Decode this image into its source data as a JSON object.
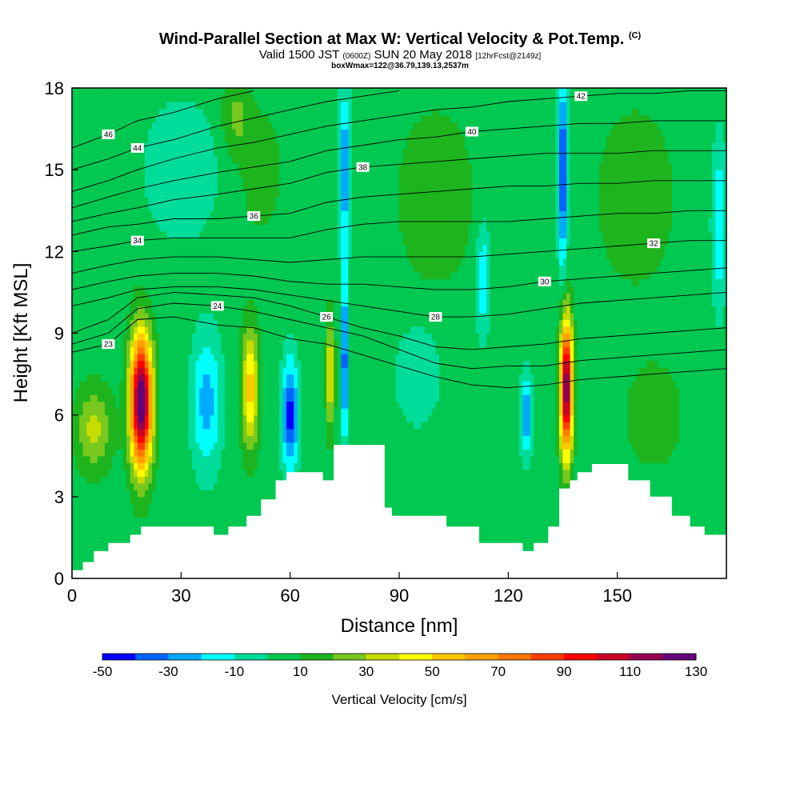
{
  "header": {
    "title_main": "Wind-Parallel Section at Max W: Vertical Velocity & Pot.Temp.",
    "title_copyright": "(C)",
    "valid_prefix": "Valid 1500 JST",
    "valid_utc": "(0600Z)",
    "valid_date": "SUN 20 May 2018",
    "forecast_info": "[12hrFcst@2149z]",
    "box_info": "boxWmax=122@36.79,139.13,2537m"
  },
  "chart_data": {
    "type": "heatmap",
    "xlabel": "Distance [nm]",
    "ylabel": "Height [Kft MSL]",
    "xlim": [
      0,
      180
    ],
    "ylim": [
      0,
      18
    ],
    "xticks": [
      0,
      30,
      60,
      90,
      120,
      150
    ],
    "yticks": [
      0,
      3,
      6,
      9,
      12,
      15,
      18
    ],
    "colorbar": {
      "title": "Vertical Velocity [cm/s]",
      "tick_labels": [
        "-50",
        "-30",
        "-10",
        "10",
        "30",
        "50",
        "70",
        "90",
        "110",
        "130"
      ],
      "levels": [
        -50,
        -40,
        -30,
        -20,
        -10,
        0,
        10,
        20,
        30,
        40,
        50,
        60,
        70,
        80,
        90,
        100,
        110,
        120,
        130
      ],
      "colors": [
        "#0000ff",
        "#0064ff",
        "#00aaff",
        "#00ffff",
        "#00dc9a",
        "#00c850",
        "#1eb41e",
        "#78c81e",
        "#c8dc00",
        "#ffff00",
        "#ffc800",
        "#ffa000",
        "#ff7800",
        "#ff3c00",
        "#ff0000",
        "#c80028",
        "#960050",
        "#640078"
      ]
    },
    "background_w": 5,
    "cells": [
      {
        "x": 19,
        "y": 6.5,
        "w": 130,
        "sx": 3,
        "sy": 2.4
      },
      {
        "x": 136,
        "y": 7,
        "w": 118,
        "sx": 1.7,
        "sy": 2.5
      },
      {
        "x": 49,
        "y": 7,
        "w": 50,
        "sx": 2.2,
        "sy": 2.2
      },
      {
        "x": 71,
        "y": 7.5,
        "w": 38,
        "sx": 1.2,
        "sy": 2
      },
      {
        "x": 6,
        "y": 5.5,
        "w": 28,
        "sx": 5,
        "sy": 1.5
      },
      {
        "x": 60,
        "y": 6,
        "w": -50,
        "sx": 2.2,
        "sy": 2
      },
      {
        "x": 75,
        "y": 8,
        "w": -45,
        "sx": 1,
        "sy": 3
      },
      {
        "x": 37,
        "y": 6.5,
        "w": -30,
        "sx": 4,
        "sy": 2.5
      },
      {
        "x": 135,
        "y": 15,
        "w": -50,
        "sx": 1.3,
        "sy": 3.5
      },
      {
        "x": 75,
        "y": 15,
        "w": -35,
        "sx": 1.5,
        "sy": 3
      },
      {
        "x": 125,
        "y": 6,
        "w": -35,
        "sx": 1.5,
        "sy": 1.5
      },
      {
        "x": 113,
        "y": 11,
        "w": -25,
        "sx": 2,
        "sy": 2
      },
      {
        "x": 178,
        "y": 13,
        "w": -25,
        "sx": 2,
        "sy": 3
      },
      {
        "x": 30,
        "y": 15,
        "w": -15,
        "sx": 10,
        "sy": 2.5
      },
      {
        "x": 95,
        "y": 7.5,
        "w": -15,
        "sx": 6,
        "sy": 1.8
      },
      {
        "x": 100,
        "y": 14,
        "w": 15,
        "sx": 10,
        "sy": 3
      },
      {
        "x": 155,
        "y": 14,
        "w": 15,
        "sx": 10,
        "sy": 3
      },
      {
        "x": 160,
        "y": 6,
        "w": 12,
        "sx": 8,
        "sy": 2
      },
      {
        "x": 45,
        "y": 17,
        "w": 18,
        "sx": 4,
        "sy": 1.5
      },
      {
        "x": 52,
        "y": 15,
        "w": 14,
        "sx": 5,
        "sy": 2
      }
    ],
    "terrain": [
      [
        0,
        0.3
      ],
      [
        3,
        0.6
      ],
      [
        6,
        1
      ],
      [
        10,
        1.3
      ],
      [
        16,
        1.6
      ],
      [
        19,
        1.9
      ],
      [
        32,
        1.9
      ],
      [
        39,
        1.6
      ],
      [
        43,
        1.9
      ],
      [
        48,
        2.3
      ],
      [
        52,
        2.9
      ],
      [
        56,
        3.6
      ],
      [
        59,
        3.9
      ],
      [
        66,
        3.9
      ],
      [
        69,
        3.6
      ],
      [
        72,
        4.9
      ],
      [
        82,
        4.9
      ],
      [
        86,
        2.6
      ],
      [
        88,
        2.3
      ],
      [
        95,
        2.3
      ],
      [
        103,
        1.9
      ],
      [
        110,
        1.9
      ],
      [
        112,
        1.3
      ],
      [
        120,
        1.3
      ],
      [
        124,
        1.0
      ],
      [
        127,
        1.3
      ],
      [
        131,
        1.9
      ],
      [
        134,
        3.3
      ],
      [
        137,
        3.6
      ],
      [
        139,
        3.9
      ],
      [
        143,
        4.2
      ],
      [
        150,
        4.2
      ],
      [
        153,
        3.6
      ],
      [
        159,
        3.0
      ],
      [
        165,
        2.3
      ],
      [
        170,
        1.9
      ],
      [
        174,
        1.6
      ],
      [
        180,
        1.6
      ]
    ],
    "theta_contours": [
      {
        "label": "23",
        "pts": [
          [
            0,
            8.3
          ],
          [
            10,
            8.6
          ],
          [
            18,
            9.5
          ],
          [
            28,
            9.6
          ],
          [
            40,
            9.3
          ],
          [
            50,
            9.2
          ],
          [
            60,
            8.8
          ],
          [
            70,
            8.6
          ],
          [
            80,
            8.2
          ],
          [
            90,
            7.8
          ],
          [
            100,
            7.4
          ],
          [
            110,
            7.1
          ],
          [
            120,
            7
          ],
          [
            130,
            7.1
          ],
          [
            140,
            7.3
          ],
          [
            150,
            7.4
          ],
          [
            160,
            7.5
          ],
          [
            170,
            7.6
          ],
          [
            180,
            7.7
          ]
        ]
      },
      {
        "label": "24",
        "pts": [
          [
            0,
            8.6
          ],
          [
            10,
            9.0
          ],
          [
            18,
            9.9
          ],
          [
            28,
            10.1
          ],
          [
            40,
            10.0
          ],
          [
            50,
            9.8
          ],
          [
            60,
            9.5
          ],
          [
            70,
            9.2
          ],
          [
            80,
            8.9
          ],
          [
            90,
            8.4
          ],
          [
            100,
            7.9
          ],
          [
            110,
            7.7
          ],
          [
            120,
            7.8
          ],
          [
            130,
            7.8
          ],
          [
            140,
            8
          ],
          [
            150,
            8.1
          ],
          [
            160,
            8.2
          ],
          [
            170,
            8.3
          ],
          [
            180,
            8.4
          ]
        ]
      },
      {
        "label": "26",
        "pts": [
          [
            0,
            9.0
          ],
          [
            10,
            9.5
          ],
          [
            18,
            10.3
          ],
          [
            28,
            10.5
          ],
          [
            40,
            10.4
          ],
          [
            50,
            10.3
          ],
          [
            60,
            10.0
          ],
          [
            70,
            9.6
          ],
          [
            80,
            9.2
          ],
          [
            90,
            8.9
          ],
          [
            100,
            8.5
          ],
          [
            110,
            8.4
          ],
          [
            120,
            8.5
          ],
          [
            130,
            8.6
          ],
          [
            140,
            8.8
          ],
          [
            150,
            8.9
          ],
          [
            160,
            9.0
          ],
          [
            170,
            9.1
          ],
          [
            180,
            9.2
          ]
        ]
      },
      {
        "label": "28",
        "pts": [
          [
            0,
            10.0
          ],
          [
            10,
            10.3
          ],
          [
            18,
            10.6
          ],
          [
            28,
            10.7
          ],
          [
            40,
            10.7
          ],
          [
            50,
            10.6
          ],
          [
            60,
            10.4
          ],
          [
            70,
            10.2
          ],
          [
            80,
            10.0
          ],
          [
            90,
            9.8
          ],
          [
            100,
            9.6
          ],
          [
            110,
            9.6
          ],
          [
            120,
            9.7
          ],
          [
            130,
            9.9
          ],
          [
            140,
            10.1
          ],
          [
            150,
            10.2
          ],
          [
            160,
            10.3
          ],
          [
            170,
            10.4
          ],
          [
            180,
            10.5
          ]
        ]
      },
      {
        "label": "30",
        "pts": [
          [
            0,
            10.6
          ],
          [
            10,
            10.9
          ],
          [
            18,
            11.1
          ],
          [
            28,
            11.2
          ],
          [
            40,
            11.2
          ],
          [
            50,
            11.1
          ],
          [
            60,
            10.9
          ],
          [
            70,
            10.8
          ],
          [
            80,
            10.8
          ],
          [
            90,
            10.7
          ],
          [
            100,
            10.6
          ],
          [
            110,
            10.6
          ],
          [
            120,
            10.7
          ],
          [
            130,
            10.9
          ],
          [
            140,
            11
          ],
          [
            150,
            11.1
          ],
          [
            160,
            11.2
          ],
          [
            170,
            11.3
          ],
          [
            180,
            11.4
          ]
        ]
      },
      {
        "label": "32",
        "pts": [
          [
            0,
            11.2
          ],
          [
            10,
            11.5
          ],
          [
            18,
            11.7
          ],
          [
            28,
            11.8
          ],
          [
            40,
            11.8
          ],
          [
            50,
            11.7
          ],
          [
            60,
            11.6
          ],
          [
            70,
            11.7
          ],
          [
            80,
            11.8
          ],
          [
            90,
            11.8
          ],
          [
            100,
            11.8
          ],
          [
            110,
            11.8
          ],
          [
            120,
            11.9
          ],
          [
            130,
            12
          ],
          [
            140,
            12.1
          ],
          [
            150,
            12.2
          ],
          [
            160,
            12.3
          ],
          [
            170,
            12.4
          ],
          [
            180,
            12.4
          ]
        ]
      },
      {
        "label": "34",
        "pts": [
          [
            0,
            12.0
          ],
          [
            10,
            12.2
          ],
          [
            18,
            12.4
          ],
          [
            28,
            12.5
          ],
          [
            40,
            12.5
          ],
          [
            50,
            12.5
          ],
          [
            60,
            12.5
          ],
          [
            70,
            12.8
          ],
          [
            80,
            13
          ],
          [
            90,
            13.1
          ],
          [
            100,
            13.1
          ],
          [
            110,
            13.1
          ],
          [
            120,
            13.1
          ],
          [
            130,
            13.2
          ],
          [
            140,
            13.3
          ],
          [
            150,
            13.4
          ],
          [
            160,
            13.4
          ],
          [
            170,
            13.5
          ],
          [
            180,
            13.5
          ]
        ]
      },
      {
        "label": "36",
        "pts": [
          [
            0,
            12.6
          ],
          [
            10,
            12.9
          ],
          [
            18,
            13
          ],
          [
            28,
            13.2
          ],
          [
            40,
            13.2
          ],
          [
            50,
            13.3
          ],
          [
            60,
            13.4
          ],
          [
            70,
            13.8
          ],
          [
            80,
            14
          ],
          [
            90,
            14.1
          ],
          [
            100,
            14.2
          ],
          [
            110,
            14.3
          ],
          [
            120,
            14.4
          ],
          [
            130,
            14.4
          ],
          [
            140,
            14.5
          ],
          [
            150,
            14.5
          ],
          [
            160,
            14.6
          ],
          [
            170,
            14.6
          ],
          [
            180,
            14.6
          ]
        ]
      },
      {
        "label": "38",
        "pts": [
          [
            0,
            13.1
          ],
          [
            10,
            13.4
          ],
          [
            18,
            13.6
          ],
          [
            28,
            13.9
          ],
          [
            40,
            14.1
          ],
          [
            50,
            14.3
          ],
          [
            60,
            14.5
          ],
          [
            70,
            14.9
          ],
          [
            80,
            15.1
          ],
          [
            90,
            15.2
          ],
          [
            100,
            15.3
          ],
          [
            110,
            15.4
          ],
          [
            120,
            15.5
          ],
          [
            130,
            15.6
          ],
          [
            140,
            15.6
          ],
          [
            150,
            15.6
          ],
          [
            160,
            15.7
          ],
          [
            170,
            15.7
          ],
          [
            180,
            15.7
          ]
        ]
      },
      {
        "label": "40",
        "pts": [
          [
            0,
            13.6
          ],
          [
            10,
            14
          ],
          [
            18,
            14.3
          ],
          [
            28,
            14.6
          ],
          [
            40,
            14.9
          ],
          [
            50,
            15.1
          ],
          [
            60,
            15.3
          ],
          [
            70,
            15.7
          ],
          [
            80,
            15.9
          ],
          [
            90,
            16.1
          ],
          [
            100,
            16.2
          ],
          [
            110,
            16.4
          ],
          [
            120,
            16.5
          ],
          [
            130,
            16.6
          ],
          [
            140,
            16.7
          ],
          [
            150,
            16.7
          ],
          [
            160,
            16.8
          ],
          [
            170,
            16.8
          ],
          [
            180,
            16.8
          ]
        ]
      },
      {
        "label": "42",
        "pts": [
          [
            0,
            14.2
          ],
          [
            10,
            14.6
          ],
          [
            18,
            15
          ],
          [
            28,
            15.4
          ],
          [
            40,
            15.8
          ],
          [
            50,
            16
          ],
          [
            60,
            16.3
          ],
          [
            70,
            16.6
          ],
          [
            80,
            16.8
          ],
          [
            90,
            17
          ],
          [
            100,
            17.2
          ],
          [
            110,
            17.3
          ],
          [
            120,
            17.5
          ],
          [
            130,
            17.6
          ],
          [
            140,
            17.7
          ],
          [
            150,
            17.8
          ],
          [
            160,
            17.8
          ],
          [
            170,
            17.9
          ],
          [
            180,
            17.9
          ]
        ]
      },
      {
        "label": "44",
        "pts": [
          [
            0,
            15
          ],
          [
            10,
            15.4
          ],
          [
            18,
            15.8
          ],
          [
            28,
            16.1
          ],
          [
            40,
            16.6
          ],
          [
            50,
            16.9
          ],
          [
            60,
            17.2
          ],
          [
            70,
            17.5
          ],
          [
            80,
            17.7
          ],
          [
            90,
            17.9
          ]
        ]
      },
      {
        "label": "46",
        "pts": [
          [
            0,
            15.8
          ],
          [
            10,
            16.3
          ],
          [
            18,
            16.8
          ],
          [
            28,
            17.1
          ],
          [
            40,
            17.6
          ],
          [
            50,
            17.9
          ]
        ]
      }
    ]
  }
}
